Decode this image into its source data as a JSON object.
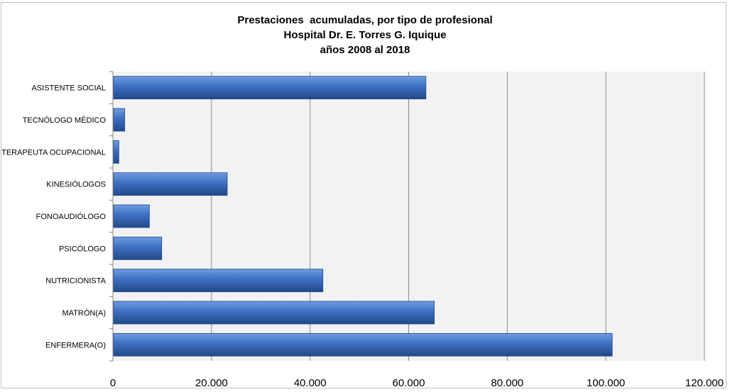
{
  "chart_data": {
    "type": "bar",
    "orientation": "horizontal",
    "title_lines": [
      "Prestaciones  acumuladas, por tipo de profesional",
      "Hospital Dr. E. Torres G. Iquique",
      "años 2008 al 2018"
    ],
    "categories": [
      "ASISTENTE SOCIAL",
      "TECNÓLOGO MÉDICO",
      "TERAPEUTA OCUPACIONAL",
      "KINESIÓLOGOS",
      "FONOAUDIÓLOGO",
      "PSICÓLOGO",
      "NUTRICIONISTA",
      "MATRÓN(A)",
      "ENFERMERA(O)"
    ],
    "values": [
      63500,
      2400,
      1200,
      23200,
      7400,
      9900,
      42600,
      65200,
      101300
    ],
    "xlim": [
      0,
      120000
    ],
    "x_ticks": [
      0,
      20000,
      40000,
      60000,
      80000,
      100000,
      120000
    ],
    "x_tick_labels": [
      "0",
      "20.000",
      "40.000",
      "60.000",
      "80.000",
      "100.000",
      "120.000"
    ],
    "xlabel": "",
    "ylabel": "",
    "grid": true,
    "legend": "none",
    "colors": {
      "bar_light": "#6f9be0",
      "bar_mid": "#3d6fc2",
      "bar_dark": "#22498a",
      "plot_bg": "#f2f2f2",
      "grid": "#8c8c8c",
      "frame": "#bfbfbf"
    }
  }
}
